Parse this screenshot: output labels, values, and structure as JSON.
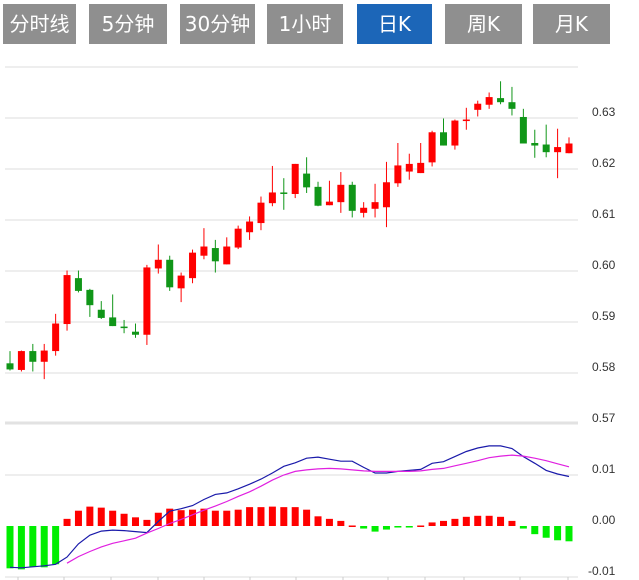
{
  "tabs": [
    {
      "label": "分时线",
      "active": false
    },
    {
      "label": "5分钟",
      "active": false
    },
    {
      "label": "30分钟",
      "active": false
    },
    {
      "label": "1小时",
      "active": false
    },
    {
      "label": "日K",
      "active": true
    },
    {
      "label": "周K",
      "active": false
    },
    {
      "label": "月K",
      "active": false
    }
  ],
  "colors": {
    "tab_bg": "#8f8f8f",
    "tab_active_bg": "#1c66b8",
    "up": "#ff0000",
    "down": "#109618",
    "hist_up": "#ff0000",
    "hist_down": "#00ee00",
    "dif": "#1a1aaa",
    "dea": "#e020e0",
    "grid": "#dddddd"
  },
  "chart_data": [
    {
      "type": "candlestick",
      "y_ticks": [
        "0.63",
        "0.62",
        "0.61",
        "0.60",
        "0.59",
        "0.58",
        "0.57"
      ],
      "ylim": [
        0.57,
        0.64
      ],
      "grid": true,
      "ohlc": [
        [
          0.5819,
          0.5843,
          0.5805,
          0.5807
        ],
        [
          0.5806,
          0.5844,
          0.5803,
          0.5843
        ],
        [
          0.5843,
          0.5857,
          0.5803,
          0.5822
        ],
        [
          0.5822,
          0.5857,
          0.5788,
          0.5844
        ],
        [
          0.5843,
          0.5916,
          0.5834,
          0.5897
        ],
        [
          0.5896,
          0.6001,
          0.5883,
          0.5992
        ],
        [
          0.5986,
          0.6001,
          0.5958,
          0.5961
        ],
        [
          0.5963,
          0.5965,
          0.591,
          0.5933
        ],
        [
          0.5924,
          0.5941,
          0.5906,
          0.5908
        ],
        [
          0.5909,
          0.5954,
          0.5892,
          0.5892
        ],
        [
          0.5891,
          0.5904,
          0.5878,
          0.5888
        ],
        [
          0.5881,
          0.5897,
          0.5869,
          0.5875
        ],
        [
          0.5875,
          0.6012,
          0.5855,
          0.6007
        ],
        [
          0.6005,
          0.6052,
          0.5995,
          0.6022
        ],
        [
          0.6022,
          0.603,
          0.5961,
          0.5968
        ],
        [
          0.5966,
          0.5997,
          0.5939,
          0.5991
        ],
        [
          0.5986,
          0.6042,
          0.5976,
          0.6036
        ],
        [
          0.603,
          0.6084,
          0.6023,
          0.6048
        ],
        [
          0.6045,
          0.6061,
          0.5997,
          0.6019
        ],
        [
          0.6013,
          0.6066,
          0.6013,
          0.6048
        ],
        [
          0.6046,
          0.6089,
          0.6043,
          0.6083
        ],
        [
          0.6076,
          0.6107,
          0.6061,
          0.6097
        ],
        [
          0.6094,
          0.6146,
          0.608,
          0.6134
        ],
        [
          0.6133,
          0.6206,
          0.6127,
          0.6154
        ],
        [
          0.6154,
          0.6182,
          0.612,
          0.6152
        ],
        [
          0.6151,
          0.621,
          0.6143,
          0.621
        ],
        [
          0.6191,
          0.6223,
          0.6153,
          0.6164
        ],
        [
          0.6165,
          0.6175,
          0.6127,
          0.6128
        ],
        [
          0.6129,
          0.6177,
          0.6129,
          0.6136
        ],
        [
          0.6135,
          0.6194,
          0.6114,
          0.6169
        ],
        [
          0.6169,
          0.6175,
          0.6105,
          0.6118
        ],
        [
          0.6114,
          0.6135,
          0.6105,
          0.6124
        ],
        [
          0.6122,
          0.6171,
          0.6105,
          0.6135
        ],
        [
          0.6125,
          0.6214,
          0.6086,
          0.6174
        ],
        [
          0.6172,
          0.6251,
          0.6165,
          0.6207
        ],
        [
          0.6195,
          0.623,
          0.6179,
          0.621
        ],
        [
          0.6192,
          0.6251,
          0.6192,
          0.6212
        ],
        [
          0.6213,
          0.6275,
          0.6205,
          0.6272
        ],
        [
          0.6272,
          0.6299,
          0.6246,
          0.6246
        ],
        [
          0.6246,
          0.6297,
          0.6238,
          0.6295
        ],
        [
          0.6294,
          0.632,
          0.6277,
          0.6297
        ],
        [
          0.6316,
          0.6334,
          0.6303,
          0.6328
        ],
        [
          0.6326,
          0.635,
          0.6318,
          0.6341
        ],
        [
          0.6339,
          0.6372,
          0.6327,
          0.6331
        ],
        [
          0.6331,
          0.6361,
          0.6305,
          0.6318
        ],
        [
          0.6302,
          0.6318,
          0.625,
          0.625
        ],
        [
          0.6251,
          0.6277,
          0.6222,
          0.6246
        ],
        [
          0.6248,
          0.6287,
          0.6223,
          0.6233
        ],
        [
          0.6233,
          0.6279,
          0.6182,
          0.6243
        ],
        [
          0.6231,
          0.6262,
          0.6231,
          0.625
        ]
      ]
    },
    {
      "type": "macd",
      "y_ticks": [
        "0.01",
        "0.00",
        "-0.01"
      ],
      "ylim": [
        -0.01,
        0.01
      ],
      "grid": true,
      "histogram": [
        -0.0083,
        -0.0085,
        -0.008,
        -0.0081,
        -0.0075,
        0.0014,
        0.003,
        0.0038,
        0.0036,
        0.003,
        0.0024,
        0.0017,
        0.0012,
        0.0026,
        0.0034,
        0.0031,
        0.0032,
        0.0034,
        0.003,
        0.003,
        0.0032,
        0.0037,
        0.0037,
        0.0038,
        0.0037,
        0.0037,
        0.0032,
        0.0019,
        0.0014,
        0.001,
        0.0001,
        -0.0005,
        -0.0011,
        -0.0007,
        -0.0003,
        -0.0003,
        0.0001,
        0.0007,
        0.001,
        0.0014,
        0.0018,
        0.002,
        0.002,
        0.0018,
        0.001,
        -0.0005,
        -0.0016,
        -0.0023,
        -0.0028,
        -0.003
      ],
      "dif": [
        -0.0081,
        -0.0082,
        -0.008,
        -0.0078,
        -0.0075,
        -0.0061,
        -0.0035,
        -0.0018,
        -0.001,
        -0.0008,
        -0.0009,
        -0.0011,
        -0.0013,
        0.0009,
        0.0029,
        0.0034,
        0.004,
        0.0052,
        0.0062,
        0.0065,
        0.0073,
        0.0082,
        0.0092,
        0.0104,
        0.0117,
        0.0124,
        0.0133,
        0.0135,
        0.0131,
        0.0127,
        0.0127,
        0.0115,
        0.0104,
        0.0104,
        0.0107,
        0.0109,
        0.0111,
        0.0123,
        0.0126,
        0.0136,
        0.0146,
        0.0153,
        0.0157,
        0.0157,
        0.0152,
        0.0136,
        0.0123,
        0.0109,
        0.0102,
        0.0097
      ],
      "dea": [
        null,
        null,
        null,
        null,
        null,
        -0.0073,
        -0.006,
        -0.005,
        -0.0041,
        -0.0034,
        -0.0029,
        -0.0024,
        -0.0014,
        -0.0005,
        0.0005,
        0.0013,
        0.0022,
        0.0031,
        0.0039,
        0.0048,
        0.0058,
        0.0067,
        0.0078,
        0.009,
        0.01,
        0.0107,
        0.011,
        0.0112,
        0.0113,
        0.0112,
        0.011,
        0.0108,
        0.0107,
        0.0107,
        0.0107,
        0.0107,
        0.0108,
        0.0111,
        0.0113,
        0.0118,
        0.0123,
        0.0128,
        0.0134,
        0.0137,
        0.0139,
        0.0137,
        0.0133,
        0.0128,
        0.0122,
        0.0116
      ]
    }
  ]
}
